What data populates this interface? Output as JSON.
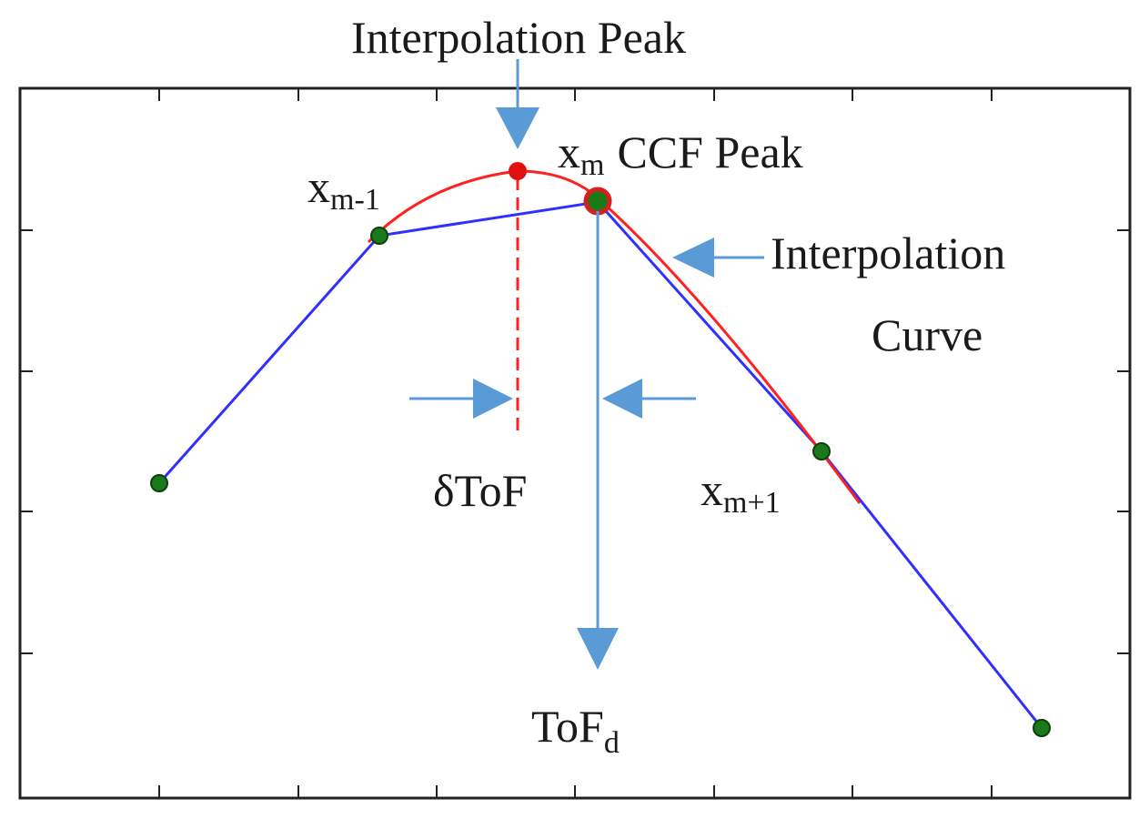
{
  "labels": {
    "interpolation_peak": "Interpolation Peak",
    "ccf_peak": {
      "base": "x",
      "sub": "m",
      "text": "CCF Peak"
    },
    "x_prev": {
      "base": "x",
      "sub": "m-1"
    },
    "x_next": {
      "base": "x",
      "sub": "m+1"
    },
    "interpolation_curve": [
      "Interpolation",
      "Curve"
    ],
    "delta_tof": "δToF",
    "tof_d": {
      "base": "ToF",
      "sub": "d"
    }
  }
}
